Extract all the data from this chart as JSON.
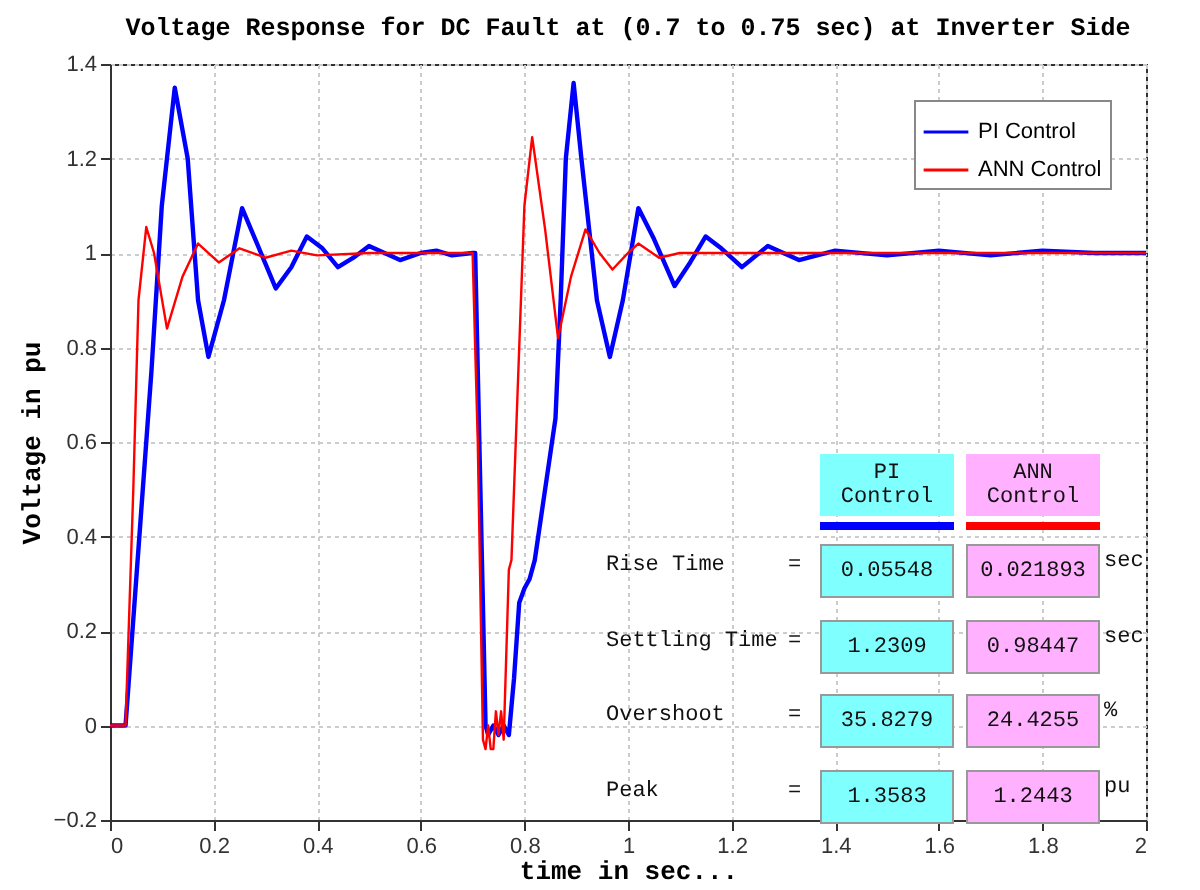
{
  "chart_data": {
    "type": "line",
    "title": "Voltage Response for DC Fault at (0.7 to 0.75 sec) at Inverter Side",
    "xlabel": "time in sec...",
    "ylabel": "Voltage in pu",
    "xlim": [
      0,
      2
    ],
    "xticks": [
      0,
      0.2,
      0.4,
      0.6,
      0.8,
      1,
      1.2,
      1.4,
      1.6,
      1.8,
      2
    ],
    "ylim": [
      -0.2,
      1.4
    ],
    "yticks": [
      -0.2,
      0,
      0.2,
      0.4,
      0.6,
      0.8,
      1,
      1.2,
      1.4
    ],
    "grid": true,
    "legend": "top right",
    "line_style": "solid",
    "marker": "none",
    "series": [
      {
        "name": "PI Control",
        "color": "#0000ff",
        "x": [
          0,
          0.03,
          0.05,
          0.08,
          0.1,
          0.125,
          0.15,
          0.17,
          0.19,
          0.22,
          0.255,
          0.28,
          0.32,
          0.35,
          0.38,
          0.41,
          0.44,
          0.47,
          0.5,
          0.53,
          0.56,
          0.6,
          0.63,
          0.66,
          0.7,
          0.705,
          0.715,
          0.725,
          0.73,
          0.74,
          0.75,
          0.76,
          0.77,
          0.78,
          0.79,
          0.8,
          0.81,
          0.82,
          0.84,
          0.86,
          0.87,
          0.88,
          0.895,
          0.91,
          0.94,
          0.965,
          0.99,
          1.02,
          1.05,
          1.09,
          1.12,
          1.15,
          1.18,
          1.22,
          1.27,
          1.33,
          1.4,
          1.5,
          1.6,
          1.7,
          1.8,
          1.9,
          2
        ],
        "values": [
          0,
          0,
          0.3,
          0.75,
          1.1,
          1.35,
          1.2,
          0.9,
          0.78,
          0.9,
          1.095,
          1.03,
          0.925,
          0.97,
          1.035,
          1.01,
          0.97,
          0.99,
          1.015,
          1,
          0.985,
          1,
          1.005,
          0.995,
          1,
          1,
          0.5,
          0,
          -0.02,
          0,
          -0.02,
          0,
          -0.02,
          0.1,
          0.26,
          0.29,
          0.31,
          0.35,
          0.5,
          0.65,
          0.9,
          1.2,
          1.36,
          1.2,
          0.9,
          0.78,
          0.9,
          1.095,
          1.03,
          0.93,
          0.98,
          1.035,
          1.01,
          0.97,
          1.015,
          0.985,
          1.005,
          0.995,
          1.005,
          0.995,
          1.005,
          1,
          1
        ]
      },
      {
        "name": "ANN Control",
        "color": "#ff0000",
        "x": [
          0,
          0.03,
          0.045,
          0.055,
          0.07,
          0.085,
          0.11,
          0.14,
          0.17,
          0.21,
          0.25,
          0.3,
          0.35,
          0.4,
          0.5,
          0.6,
          0.7,
          0.71,
          0.72,
          0.725,
          0.73,
          0.735,
          0.74,
          0.745,
          0.75,
          0.755,
          0.76,
          0.77,
          0.775,
          0.79,
          0.8,
          0.815,
          0.84,
          0.865,
          0.89,
          0.918,
          0.945,
          0.97,
          1.0,
          1.02,
          1.06,
          1.1,
          1.2,
          1.4,
          1.6,
          1.8,
          2
        ],
        "values": [
          0,
          0,
          0.5,
          0.9,
          1.055,
          1,
          0.84,
          0.95,
          1.02,
          0.98,
          1.01,
          0.99,
          1.005,
          0.995,
          1,
          1,
          1,
          0.6,
          -0.03,
          -0.05,
          0,
          -0.05,
          -0.05,
          0.03,
          -0.02,
          0.03,
          -0.03,
          0.33,
          0.35,
          0.8,
          1.1,
          1.245,
          1.05,
          0.82,
          0.95,
          1.05,
          1.0,
          0.965,
          1.0,
          1.02,
          0.99,
          1.0,
          1,
          1,
          1,
          1,
          1
        ]
      }
    ],
    "annotations": [
      "PI\nControl",
      "ANN\nControl",
      "Rise Time",
      "=",
      "0.05548",
      "0.021893",
      "sec",
      "Settling Time",
      "=",
      "1.2309",
      "0.98447",
      "sec",
      "Overshoot",
      "=",
      "35.8279",
      "24.4255",
      "%",
      "Peak",
      "=",
      "1.3583",
      "1.2443",
      "pu"
    ]
  }
}
